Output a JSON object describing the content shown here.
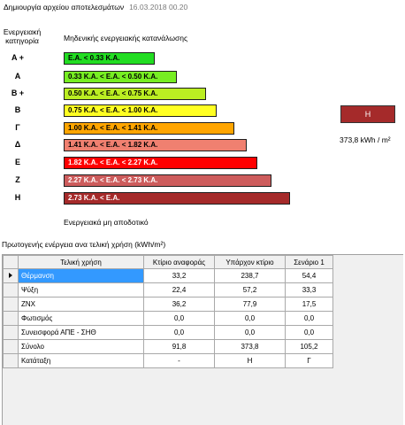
{
  "header": {
    "title": "Δημιουργία αρχείου αποτελεσμάτων",
    "date": "16.03.2018 00.20"
  },
  "scale": {
    "category_title_line1": "Ενεργειακή",
    "category_title_line2": "κατηγορία",
    "top_label": "Μηδενικής ενεργειακής κατανάλωσης",
    "bottom_label": "Ενεργειακά μη αποδοτικό",
    "items": [
      {
        "category": "A +",
        "range": "E.A. < 0.33 K.A.",
        "color": "#22dd22"
      },
      {
        "category": "A",
        "range": "0.33 K.A. <  E.A. < 0.50 K.A.",
        "color": "#77ee22"
      },
      {
        "category": "B +",
        "range": "0.50 K.A. <  E.A. < 0.75 K.A.",
        "color": "#bbee22"
      },
      {
        "category": "B",
        "range": "0.75 K.A. <  E.A. < 1.00 K.A.",
        "color": "#ffff22"
      },
      {
        "category": "Γ",
        "range": "1.00 K.A. <  E.A. < 1.41 K.A.",
        "color": "#ffa500"
      },
      {
        "category": "Δ",
        "range": "1.41 K.A. <  E.A. < 1.82 K.A.",
        "color": "#f08070"
      },
      {
        "category": "E",
        "range": "1.82 K.A. <  E.A. < 2.27 K.A.",
        "color": "#ff0000"
      },
      {
        "category": "Z",
        "range": "2.27 K.A. <  E.A. < 2.73 K.A.",
        "color": "#cd5c5c"
      },
      {
        "category": "H",
        "range": "2.73 K.A. <  E.A.",
        "color": "#a52a2a"
      }
    ]
  },
  "result": {
    "category": "H",
    "value": "373,8 kWh / m²",
    "color": "#a52a2a"
  },
  "table": {
    "title": "Πρωτογενής ενέργεια ανα τελική χρήση (kWh/m²)",
    "columns": [
      "Τελική χρήση",
      "Κτίριο αναφοράς",
      "Υπάρχον κτίριο",
      "Σενάριο 1"
    ],
    "rows": [
      {
        "name": "Θέρμανση",
        "ref": "33,2",
        "existing": "238,7",
        "scenario": "54,4",
        "selected": true
      },
      {
        "name": "Ψύξη",
        "ref": "22,4",
        "existing": "57,2",
        "scenario": "33,3"
      },
      {
        "name": "ΖΝΧ",
        "ref": "36,2",
        "existing": "77,9",
        "scenario": "17,5"
      },
      {
        "name": "Φωτισμός",
        "ref": "0,0",
        "existing": "0,0",
        "scenario": "0,0"
      },
      {
        "name": "Συνεισφορά ΑΠΕ - ΣΗΘ",
        "ref": "0,0",
        "existing": "0,0",
        "scenario": "0,0"
      },
      {
        "name": "Σύνολο",
        "ref": "91,8",
        "existing": "373,8",
        "scenario": "105,2"
      },
      {
        "name": "Κατάταξη",
        "ref": "-",
        "existing": "H",
        "scenario": "Γ"
      }
    ]
  }
}
